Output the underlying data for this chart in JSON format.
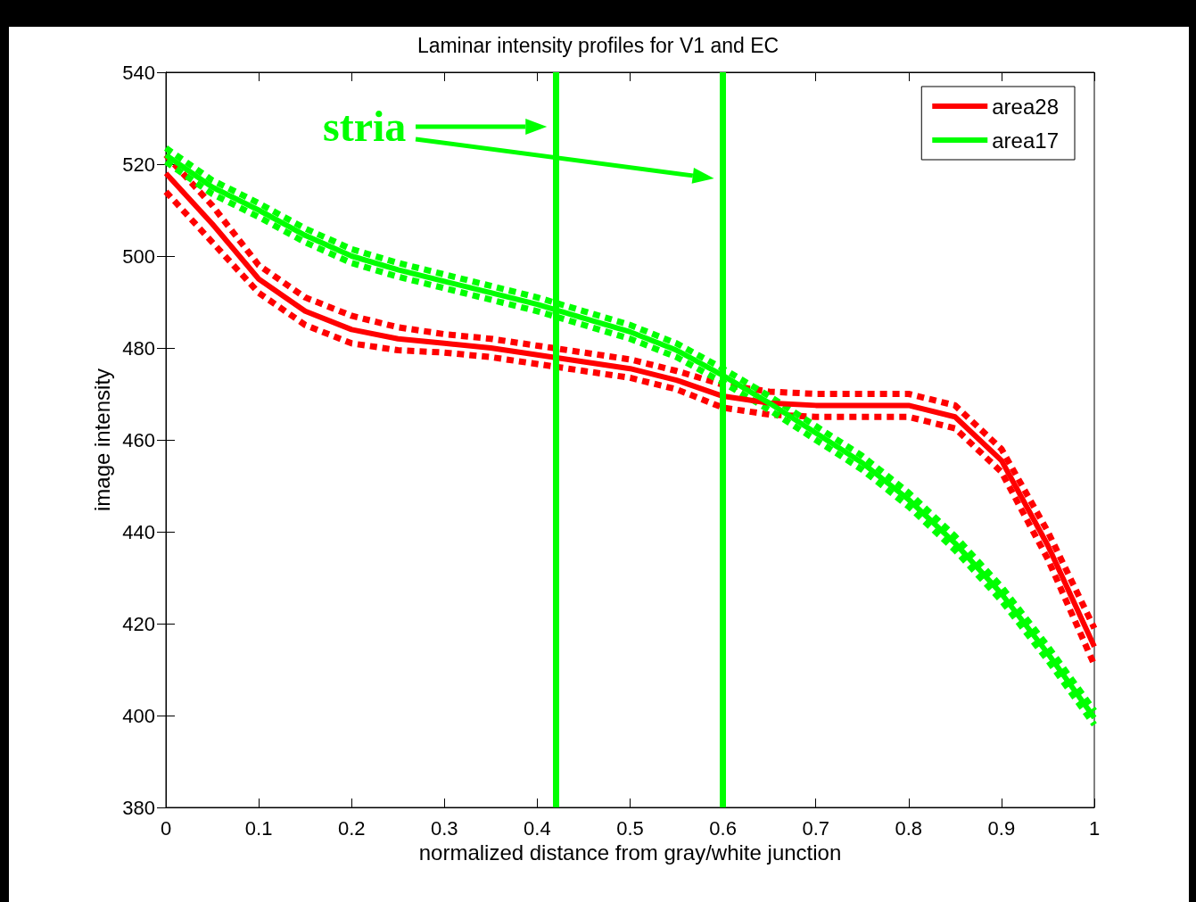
{
  "chart_data": {
    "type": "line",
    "title": "Laminar intensity profiles for V1 and EC",
    "xlabel": "normalized distance from gray/white junction",
    "ylabel": "image intensity",
    "x": [
      0,
      0.05,
      0.1,
      0.15,
      0.2,
      0.25,
      0.3,
      0.35,
      0.4,
      0.45,
      0.5,
      0.55,
      0.6,
      0.65,
      0.7,
      0.75,
      0.8,
      0.85,
      0.9,
      0.95,
      1
    ],
    "series": [
      {
        "name": "area28",
        "color": "#ff0000",
        "values": [
          518,
          507,
          495,
          488,
          484,
          482,
          481,
          480,
          478.5,
          477,
          475.5,
          473,
          469.5,
          468,
          467.5,
          467.5,
          467.5,
          465,
          455.5,
          437,
          415
        ]
      },
      {
        "color": "#ff0000",
        "line_style": "dashed",
        "values": [
          514,
          503,
          492,
          485,
          481,
          479.5,
          479,
          478,
          476.5,
          475,
          473.5,
          471,
          467,
          465.5,
          465,
          465,
          465,
          462.5,
          453,
          434,
          411
        ]
      },
      {
        "color": "#ff0000",
        "line_style": "dashed",
        "values": [
          522,
          511,
          498,
          491,
          487,
          484.5,
          483,
          482,
          480.5,
          479,
          477.5,
          475,
          472,
          470.5,
          470,
          470,
          470,
          467.5,
          458,
          440,
          419
        ]
      },
      {
        "name": "area17",
        "color": "#00ff00",
        "values": [
          522,
          515,
          510,
          504.5,
          500,
          497,
          494.5,
          492,
          489.5,
          486.5,
          483.5,
          479.5,
          474,
          468,
          461.5,
          455,
          447,
          437.5,
          426.5,
          413.5,
          399.5
        ]
      },
      {
        "color": "#00ff00",
        "line_style": "dashed",
        "values": [
          520.5,
          513.5,
          508.5,
          503,
          498.5,
          495.5,
          493,
          490.5,
          488,
          485,
          482,
          478,
          472.5,
          466.5,
          460,
          453.5,
          445.5,
          436,
          425,
          412,
          398
        ]
      },
      {
        "color": "#00ff00",
        "line_style": "dashed",
        "values": [
          523.5,
          516.5,
          511.5,
          506,
          501.5,
          498.5,
          496,
          493.5,
          491,
          488,
          485,
          481,
          475.5,
          469.5,
          463,
          456.5,
          448.5,
          439,
          428,
          415,
          401
        ]
      }
    ],
    "xlim": [
      0,
      1
    ],
    "xticks": [
      0,
      0.1,
      0.2,
      0.3,
      0.4,
      0.5,
      0.6,
      0.7,
      0.8,
      0.9,
      1
    ],
    "ylim": [
      380,
      540
    ],
    "yticks": [
      380,
      400,
      420,
      440,
      460,
      480,
      500,
      520,
      540
    ],
    "ref_lines": [
      {
        "axis": "x",
        "value": 0.42,
        "color": "#00ff00"
      },
      {
        "axis": "x",
        "value": 0.6,
        "color": "#00ff00"
      }
    ],
    "annotations": [
      "stria"
    ],
    "legend": "top right",
    "grid": false,
    "line_style": "solid",
    "marker": "none"
  }
}
